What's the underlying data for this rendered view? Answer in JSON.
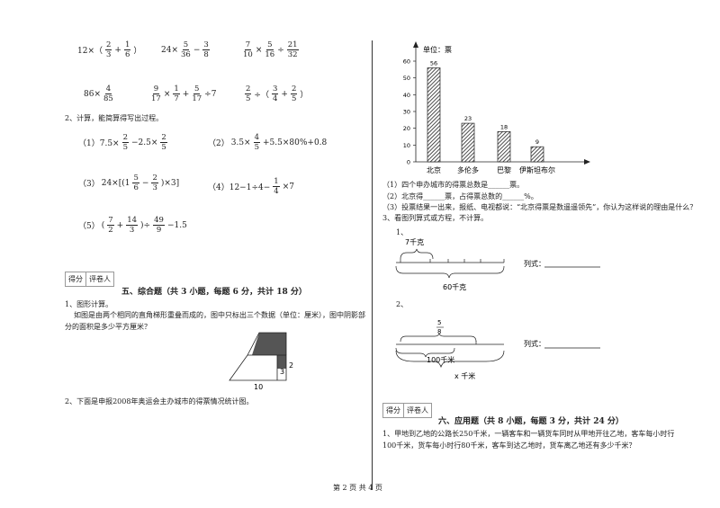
{
  "left": {
    "q1": {
      "exprs": [
        [
          "12×（",
          {
            "num": "2",
            "den": "3"
          },
          "+",
          {
            "num": "1",
            "den": "6"
          },
          "）"
        ],
        [
          "24×",
          {
            "num": "5",
            "den": "36"
          },
          "−",
          {
            "num": "3",
            "den": "8"
          }
        ],
        [
          {
            "num": "7",
            "den": "10"
          },
          "×",
          {
            "num": "5",
            "den": "16"
          },
          "÷",
          {
            "num": "21",
            "den": "32"
          }
        ],
        [
          "86×",
          {
            "num": "4",
            "den": "85"
          }
        ],
        [
          {
            "num": "9",
            "den": "17"
          },
          "×",
          {
            "num": "1",
            "den": "7"
          },
          "+",
          {
            "num": "5",
            "den": "17"
          },
          "÷7"
        ],
        [
          {
            "num": "2",
            "den": "5"
          },
          "÷（",
          {
            "num": "3",
            "den": "4"
          },
          "+",
          {
            "num": "2",
            "den": "5"
          },
          "）"
        ]
      ]
    },
    "q2": {
      "title": "2、计算，能简算得写出过程。",
      "items": [
        [
          "（1）7.5×",
          {
            "num": "2",
            "den": "5"
          },
          "−2.5×",
          {
            "num": "2",
            "den": "5"
          }
        ],
        [
          "（2）",
          "3.5×",
          {
            "num": "4",
            "den": "5"
          },
          "+5.5×80%+0.8"
        ],
        [
          "（3）",
          "24×[(1",
          {
            "num": "5",
            "den": "6"
          },
          "−",
          {
            "num": "2",
            "den": "3"
          },
          ")×3]"
        ],
        [
          "（4）12−1÷4−",
          {
            "num": "1",
            "den": "4"
          },
          "×7"
        ],
        [
          "（5）",
          "(",
          {
            "num": "7",
            "den": "2"
          },
          "+",
          {
            "num": "14",
            "den": "3"
          },
          ")÷",
          {
            "num": "49",
            "den": "9"
          },
          "−1.5"
        ]
      ]
    },
    "section5": {
      "score_labels": [
        "得分",
        "评卷人"
      ],
      "title": "五、综合题（共 3 小题，每题 6 分，共计 18 分）",
      "q1_title": "1、图形计算。",
      "q1_text": "如图是由两个相同的直角梯形重叠而成的，图中只标出三个数据（单位：厘米），图中阴影部分的面积是多少平方厘米？",
      "fig_labels": [
        "3",
        "2",
        "10"
      ],
      "q2_text": "2、下面是申报2008年奥运会主办城市的得票情况统计图。"
    }
  },
  "right": {
    "chart": {
      "unit": "单位：票",
      "categories": [
        "北京",
        "多伦多",
        "巴黎",
        "伊斯坦布尔"
      ],
      "values": [
        56,
        23,
        18,
        9
      ],
      "ylim": [
        0,
        60
      ],
      "yticks": [
        0,
        10,
        20,
        30,
        40,
        50,
        60
      ]
    },
    "chart_questions": [
      "（1）四个申办城市的得票总数是______票。",
      "（2）北京得______票，占得票总数的______%。",
      "（3）投票结果一出来，报纸、电视都说：“北京得票是数遥遥领先”，你认为这样说的理由是什么？"
    ],
    "q3": {
      "title": "3、看图列算式或方程，不计算。",
      "d1": {
        "number": "1、",
        "top_label": "7千克",
        "bottom_label": "60千克",
        "formula_label": "列式："
      },
      "d2": {
        "number": "2、",
        "fraction": {
          "num": "5",
          "den": "8"
        },
        "middle_label": "100千米",
        "bottom_label": "x 千米",
        "formula_label": "列式："
      }
    },
    "section6": {
      "score_labels": [
        "得分",
        "评卷人"
      ],
      "title": "六、应用题（共 8 小题，每题 3 分，共计 24 分）",
      "q1": "1、甲地到乙地的公路长250千米，一辆客车和一辆货车同时从甲地开往乙地，客车每小时行100千米，货车每小时行80千米，客车到达乙地时，货车离乙地还有多少千米？"
    }
  },
  "footer": "第 2 页 共 4 页"
}
